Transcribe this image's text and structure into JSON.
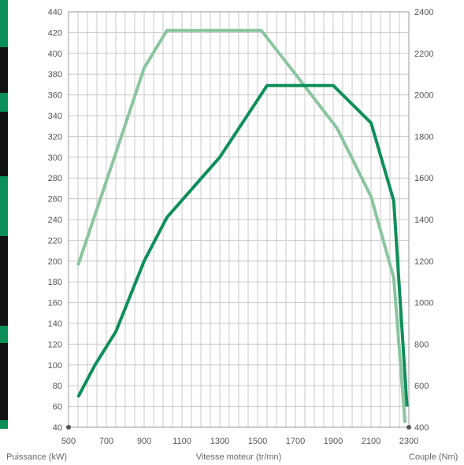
{
  "chart_data": {
    "type": "line",
    "title": "",
    "xlabel": "Vitesse moteur (tr/mn)",
    "ylabel_left": "Puissance (kW)",
    "ylabel_right": "Couple (Nm)",
    "xlim": [
      500,
      2300
    ],
    "ylim_left": [
      40,
      440
    ],
    "ylim_right": [
      400,
      2400
    ],
    "x_ticks": [
      500,
      700,
      900,
      1100,
      1300,
      1500,
      1700,
      1900,
      2100,
      2300
    ],
    "y_left_ticks": [
      40,
      60,
      80,
      100,
      120,
      140,
      160,
      180,
      200,
      220,
      240,
      260,
      280,
      300,
      320,
      340,
      360,
      380,
      400,
      420,
      440
    ],
    "y_right_ticks": [
      400,
      600,
      800,
      1000,
      1200,
      1400,
      1600,
      1800,
      2000,
      2200,
      2400
    ],
    "grid": true,
    "series": [
      {
        "key": "torque",
        "axis": "right",
        "color": "#8ac5a0",
        "x": [
          550,
          650,
          750,
          900,
          1020,
          1250,
          1520,
          1700,
          1920,
          2100,
          2220,
          2280
        ],
        "y": [
          1180,
          1450,
          1720,
          2130,
          2310,
          2310,
          2310,
          2100,
          1840,
          1510,
          1120,
          420
        ]
      },
      {
        "key": "power",
        "axis": "left",
        "color": "#0e8f5a",
        "x": [
          550,
          640,
          750,
          900,
          1020,
          1300,
          1550,
          1700,
          1900,
          2100,
          2220,
          2290
        ],
        "y": [
          69,
          100,
          132,
          200,
          242,
          300,
          369,
          369,
          369,
          333,
          258,
          60
        ]
      }
    ]
  }
}
